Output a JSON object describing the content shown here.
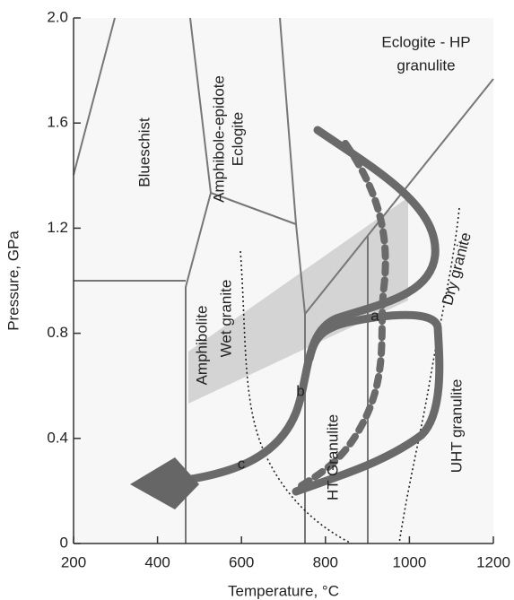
{
  "chart_data": {
    "type": "diagram",
    "x_label": "Temperature, °C",
    "y_label": "Pressure, GPa",
    "xlim": [
      200,
      1200
    ],
    "ylim": [
      0,
      2.0
    ],
    "xticks": [
      200,
      400,
      600,
      800,
      1000,
      1200
    ],
    "yticks": [
      0,
      0.4,
      0.8,
      1.2,
      1.6,
      {
        "value": 2.0,
        "label": "2.0"
      }
    ],
    "annotations": [
      "Blueschist",
      "Amphibole-epidote",
      "Eclogite",
      "Eclogite - HP",
      "granulite",
      "Amphibolite",
      "Wet granite",
      "Dry granite",
      "HT Granulite",
      "UHT granulite",
      "a",
      "b",
      "c"
    ]
  }
}
